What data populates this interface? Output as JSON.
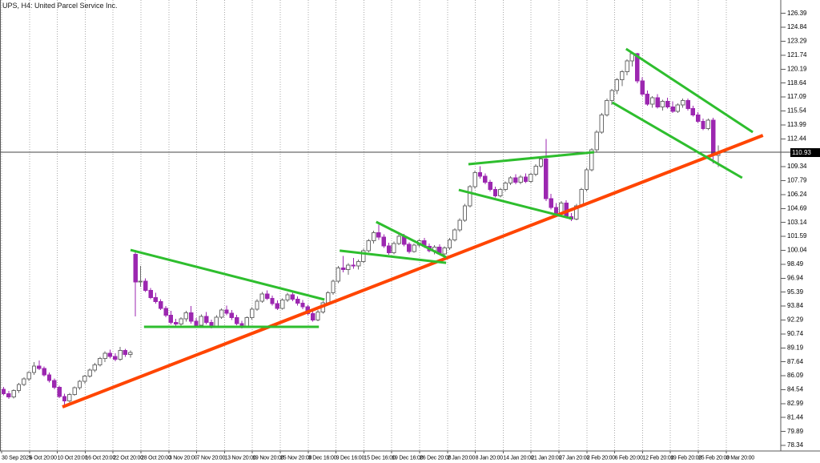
{
  "window": {
    "title": "UPS, H4: United Parcel Service Inc."
  },
  "colors": {
    "background": "#ffffff",
    "bull_body": "#ffffff",
    "bull_border": "#6b6b6b",
    "bear_body": "#9c27b0",
    "bear_border": "#9c27b0",
    "grid": "#a8a8a8",
    "axis_border": "#5a5a5a",
    "axis_text": "#000000",
    "trend_green": "#2ebe2e",
    "trend_orange": "#ff4500",
    "price_line": "#444444",
    "price_label_bg": "#000000",
    "price_label_text": "#ffffff"
  },
  "y_axis": {
    "current_price_label": "110.93",
    "ticks": [
      126.39,
      124.84,
      123.29,
      121.74,
      120.19,
      118.64,
      117.09,
      115.54,
      113.99,
      112.44,
      109.34,
      107.79,
      106.24,
      104.69,
      103.14,
      101.59,
      100.04,
      98.49,
      96.94,
      95.39,
      93.84,
      92.29,
      90.74,
      89.19,
      87.64,
      86.09,
      84.54,
      82.99,
      81.44,
      79.89,
      78.34
    ]
  },
  "x_axis": {
    "labels": [
      "30 Sep 2025",
      "6 Oct 20:00",
      "10 Oct 20:00",
      "16 Oct 20:00",
      "22 Oct 20:00",
      "28 Oct 20:00",
      "3 Nov 20:00",
      "7 Nov 20:00",
      "13 Nov 20:00",
      "19 Nov 20:00",
      "25 Nov 20:00",
      "3 Dec 16:00",
      "9 Dec 16:00",
      "15 Dec 16:00",
      "19 Dec 16:00",
      "26 Dec 20:00",
      "2 Jan 20:00",
      "8 Jan 20:00",
      "14 Jan 20:00",
      "21 Jan 20:00",
      "27 Jan 20:00",
      "2 Feb 20:00",
      "6 Feb 20:00",
      "12 Feb 20:00",
      "19 Feb 20:00",
      "25 Feb 20:00",
      "3 Mar 20:00"
    ]
  },
  "chart_data": {
    "type": "candlestick",
    "symbol": "UPS",
    "timeframe": "H4",
    "company": "United Parcel Service Inc.",
    "title": "UPS, H4: United Parcel Service Inc.",
    "grid": true,
    "legend": false,
    "ylim": [
      77.72,
      127.88
    ],
    "current_price": 110.93,
    "bar_start_x": 4.5,
    "bar_spacing": 6.33,
    "candles": [
      [
        84.6,
        84.85,
        83.9,
        84.1
      ],
      [
        84.1,
        84.4,
        83.5,
        83.75
      ],
      [
        83.75,
        84.6,
        83.55,
        84.45
      ],
      [
        84.45,
        85.3,
        84.2,
        85.1
      ],
      [
        85.1,
        85.9,
        84.95,
        85.75
      ],
      [
        85.75,
        86.6,
        85.5,
        86.45
      ],
      [
        86.45,
        87.6,
        86.2,
        87.15
      ],
      [
        87.15,
        87.8,
        86.7,
        86.9
      ],
      [
        86.9,
        87.1,
        86.0,
        86.2
      ],
      [
        86.2,
        86.45,
        85.35,
        85.55
      ],
      [
        85.55,
        85.8,
        84.6,
        84.8
      ],
      [
        84.8,
        85.0,
        83.6,
        83.8
      ],
      [
        83.8,
        84.1,
        82.9,
        83.3
      ],
      [
        83.3,
        84.2,
        83.1,
        84.0
      ],
      [
        84.0,
        84.9,
        83.85,
        84.75
      ],
      [
        84.75,
        85.6,
        84.55,
        85.45
      ],
      [
        85.45,
        86.2,
        85.2,
        86.05
      ],
      [
        86.05,
        86.9,
        85.85,
        86.7
      ],
      [
        86.7,
        87.5,
        86.5,
        87.3
      ],
      [
        87.3,
        88.2,
        87.1,
        88.0
      ],
      [
        88.0,
        88.8,
        87.6,
        88.6
      ],
      [
        88.6,
        89.0,
        88.0,
        88.25
      ],
      [
        88.25,
        88.6,
        87.7,
        87.9
      ],
      [
        87.9,
        89.3,
        87.75,
        88.9
      ],
      [
        88.9,
        89.1,
        88.2,
        88.45
      ],
      [
        88.45,
        88.9,
        88.1,
        88.7
      ],
      [
        99.6,
        100.1,
        92.7,
        96.5
      ],
      [
        96.5,
        98.3,
        96.0,
        96.6
      ],
      [
        96.6,
        96.9,
        95.4,
        95.6
      ],
      [
        95.6,
        95.85,
        94.6,
        94.8
      ],
      [
        94.8,
        95.3,
        94.1,
        94.35
      ],
      [
        94.35,
        94.6,
        93.4,
        93.6
      ],
      [
        93.6,
        93.85,
        92.6,
        92.8
      ],
      [
        92.8,
        93.3,
        91.8,
        92.0
      ],
      [
        92.0,
        92.4,
        91.65,
        91.85
      ],
      [
        91.85,
        92.6,
        91.6,
        92.4
      ],
      [
        92.4,
        93.3,
        92.1,
        93.1
      ],
      [
        93.1,
        93.85,
        91.9,
        92.15
      ],
      [
        92.15,
        92.5,
        91.4,
        91.7
      ],
      [
        91.7,
        92.9,
        91.55,
        92.7
      ],
      [
        92.7,
        93.2,
        91.8,
        92.0
      ],
      [
        92.0,
        92.35,
        91.35,
        91.6
      ],
      [
        91.6,
        92.8,
        91.5,
        92.6
      ],
      [
        92.6,
        93.6,
        92.4,
        93.4
      ],
      [
        93.4,
        93.9,
        92.8,
        93.05
      ],
      [
        93.05,
        93.4,
        92.3,
        92.55
      ],
      [
        92.55,
        92.85,
        91.7,
        91.9
      ],
      [
        91.9,
        92.2,
        91.35,
        91.55
      ],
      [
        91.55,
        92.7,
        91.45,
        92.55
      ],
      [
        92.55,
        93.7,
        92.35,
        93.5
      ],
      [
        93.5,
        94.6,
        93.3,
        94.4
      ],
      [
        94.4,
        95.4,
        94.2,
        95.2
      ],
      [
        95.2,
        95.6,
        94.5,
        94.7
      ],
      [
        94.7,
        95.0,
        93.9,
        94.1
      ],
      [
        94.1,
        94.45,
        93.4,
        93.6
      ],
      [
        93.6,
        94.7,
        93.45,
        94.5
      ],
      [
        94.5,
        95.3,
        94.3,
        95.1
      ],
      [
        95.1,
        95.5,
        94.4,
        94.6
      ],
      [
        94.6,
        94.9,
        93.9,
        94.15
      ],
      [
        94.15,
        94.5,
        93.5,
        93.75
      ],
      [
        93.75,
        94.0,
        92.8,
        93.0
      ],
      [
        93.0,
        93.3,
        92.1,
        92.3
      ],
      [
        92.3,
        93.4,
        92.15,
        93.2
      ],
      [
        93.2,
        94.4,
        93.0,
        94.2
      ],
      [
        94.2,
        95.5,
        94.0,
        95.3
      ],
      [
        95.3,
        96.8,
        95.1,
        96.6
      ],
      [
        96.6,
        98.3,
        96.4,
        98.1
      ],
      [
        98.1,
        99.4,
        97.6,
        97.9
      ],
      [
        97.9,
        98.6,
        97.3,
        98.4
      ],
      [
        98.4,
        99.2,
        98.0,
        98.3
      ],
      [
        98.3,
        99.0,
        97.9,
        98.8
      ],
      [
        98.8,
        100.2,
        98.6,
        100.0
      ],
      [
        100.0,
        101.3,
        99.8,
        101.1
      ],
      [
        101.1,
        102.2,
        100.8,
        102.0
      ],
      [
        102.0,
        102.9,
        101.2,
        101.5
      ],
      [
        101.5,
        101.8,
        100.3,
        100.55
      ],
      [
        100.55,
        100.9,
        99.55,
        99.75
      ],
      [
        99.75,
        101.0,
        99.6,
        100.8
      ],
      [
        100.8,
        101.8,
        100.6,
        101.6
      ],
      [
        101.6,
        101.85,
        100.5,
        100.7
      ],
      [
        100.7,
        100.95,
        99.7,
        99.9
      ],
      [
        99.9,
        100.8,
        99.75,
        100.6
      ],
      [
        100.6,
        101.3,
        100.4,
        101.1
      ],
      [
        101.1,
        101.4,
        100.3,
        100.5
      ],
      [
        100.5,
        100.8,
        99.8,
        100.0
      ],
      [
        100.0,
        100.6,
        99.6,
        100.4
      ],
      [
        100.4,
        100.7,
        99.5,
        99.65
      ],
      [
        99.65,
        100.5,
        99.45,
        100.3
      ],
      [
        100.3,
        101.4,
        100.1,
        101.2
      ],
      [
        101.2,
        102.5,
        101.0,
        102.3
      ],
      [
        102.3,
        103.6,
        102.1,
        103.4
      ],
      [
        103.4,
        105.2,
        103.2,
        105.0
      ],
      [
        105.0,
        107.3,
        104.8,
        107.1
      ],
      [
        107.1,
        108.9,
        106.9,
        108.7
      ],
      [
        108.7,
        109.4,
        108.0,
        108.3
      ],
      [
        108.3,
        108.6,
        107.4,
        107.6
      ],
      [
        107.6,
        107.9,
        106.6,
        106.8
      ],
      [
        106.8,
        107.1,
        105.9,
        106.1
      ],
      [
        106.1,
        107.0,
        105.9,
        106.8
      ],
      [
        106.8,
        107.7,
        106.6,
        107.5
      ],
      [
        107.5,
        108.3,
        107.3,
        108.1
      ],
      [
        108.1,
        108.5,
        107.4,
        107.6
      ],
      [
        107.6,
        108.4,
        107.4,
        108.2
      ],
      [
        108.2,
        108.6,
        107.5,
        107.7
      ],
      [
        107.7,
        108.7,
        107.5,
        108.5
      ],
      [
        108.5,
        109.6,
        108.3,
        109.4
      ],
      [
        109.4,
        110.4,
        109.2,
        110.2
      ],
      [
        110.2,
        112.4,
        105.5,
        105.8
      ],
      [
        105.8,
        106.3,
        104.6,
        104.8
      ],
      [
        104.8,
        105.3,
        104.0,
        104.2
      ],
      [
        104.2,
        105.5,
        104.0,
        105.3
      ],
      [
        105.3,
        105.6,
        103.6,
        103.8
      ],
      [
        103.8,
        104.2,
        103.3,
        103.5
      ],
      [
        103.5,
        105.2,
        103.4,
        105.0
      ],
      [
        105.0,
        107.0,
        104.8,
        106.8
      ],
      [
        106.8,
        109.2,
        106.6,
        109.0
      ],
      [
        109.0,
        111.4,
        108.8,
        111.2
      ],
      [
        111.2,
        113.4,
        111.0,
        113.2
      ],
      [
        113.2,
        115.3,
        113.0,
        115.1
      ],
      [
        115.1,
        116.9,
        114.9,
        116.7
      ],
      [
        116.7,
        118.0,
        116.2,
        117.8
      ],
      [
        117.8,
        119.2,
        117.4,
        119.0
      ],
      [
        119.0,
        120.1,
        118.3,
        119.9
      ],
      [
        119.9,
        121.3,
        119.5,
        121.1
      ],
      [
        121.1,
        122.1,
        120.5,
        121.9
      ],
      [
        121.9,
        122.0,
        118.6,
        118.9
      ],
      [
        118.9,
        119.3,
        117.2,
        117.4
      ],
      [
        117.4,
        117.8,
        116.1,
        116.3
      ],
      [
        116.3,
        117.2,
        115.9,
        117.0
      ],
      [
        117.0,
        117.4,
        115.8,
        116.0
      ],
      [
        116.0,
        116.8,
        115.6,
        116.6
      ],
      [
        116.6,
        117.0,
        115.8,
        116.0
      ],
      [
        116.0,
        116.6,
        115.3,
        115.5
      ],
      [
        115.5,
        116.4,
        115.3,
        116.2
      ],
      [
        116.2,
        116.9,
        115.9,
        116.7
      ],
      [
        116.7,
        116.9,
        115.6,
        115.8
      ],
      [
        115.8,
        116.1,
        114.9,
        115.1
      ],
      [
        115.1,
        115.4,
        114.2,
        114.4
      ],
      [
        114.4,
        114.7,
        113.4,
        113.6
      ],
      [
        113.6,
        114.7,
        113.4,
        114.5
      ],
      [
        114.5,
        114.8,
        109.7,
        110.6
      ],
      [
        110.6,
        111.7,
        109.3,
        110.93
      ]
    ],
    "trendlines": [
      {
        "name": "ascending-support-trendline",
        "color": "trend_orange",
        "width": 4,
        "x1": 11.61,
        "p1": 82.62,
        "x2": 149.8,
        "p2": 112.82
      },
      {
        "name": "triangle1-upper-trendline",
        "color": "trend_green",
        "width": 3,
        "x1": 25.04,
        "p1": 100.08,
        "x2": 63.3,
        "p2": 94.56
      },
      {
        "name": "triangle1-support-line",
        "color": "trend_green",
        "width": 3,
        "x1": 27.7,
        "p1": 91.53,
        "x2": 62.2,
        "p2": 91.53
      },
      {
        "name": "pennant-upper-trendline",
        "color": "trend_green",
        "width": 3,
        "x1": 73.5,
        "p1": 103.2,
        "x2": 87.3,
        "p2": 99.27
      },
      {
        "name": "pennant-lower-trendline",
        "color": "trend_green",
        "width": 3,
        "x1": 66.3,
        "p1": 100.0,
        "x2": 87.3,
        "p2": 98.65
      },
      {
        "name": "broadening-upper-trendline",
        "color": "trend_green",
        "width": 3,
        "x1": 91.7,
        "p1": 109.62,
        "x2": 116.5,
        "p2": 110.95
      },
      {
        "name": "broadening-lower-trendline",
        "color": "trend_green",
        "width": 3,
        "x1": 89.8,
        "p1": 106.76,
        "x2": 112.1,
        "p2": 103.56
      },
      {
        "name": "channel-upper-trendline",
        "color": "trend_green",
        "width": 3,
        "x1": 122.8,
        "p1": 122.45,
        "x2": 147.8,
        "p2": 113.18
      },
      {
        "name": "channel-lower-trendline",
        "color": "trend_green",
        "width": 3,
        "x1": 120.1,
        "p1": 116.48,
        "x2": 145.7,
        "p2": 108.1
      }
    ]
  }
}
